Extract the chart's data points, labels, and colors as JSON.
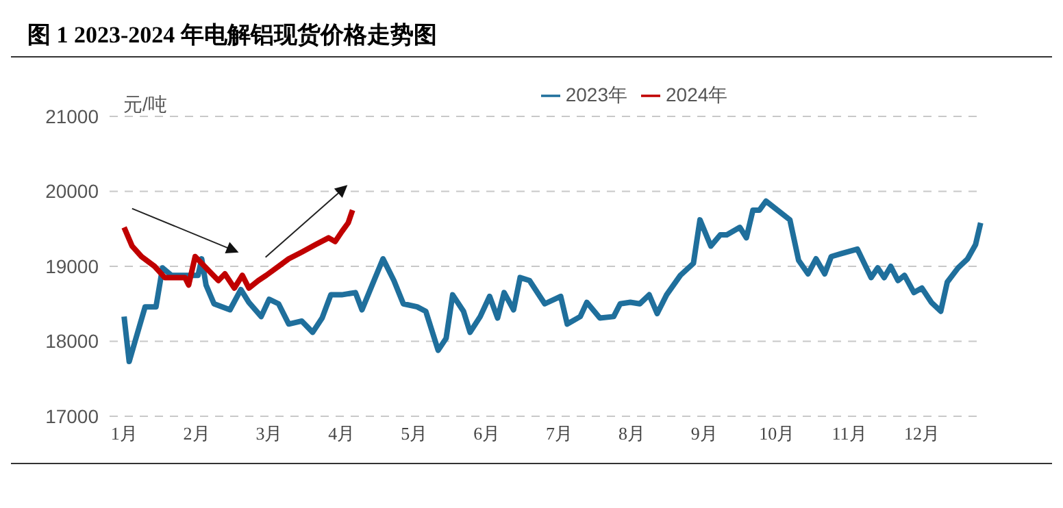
{
  "chart_data": {
    "type": "line",
    "title": "图 1 2023-2024 年电解铝现货价格走势图",
    "ylabel": "元/吨",
    "xlim": [
      0.8,
      12.85
    ],
    "xticks": [
      {
        "value": 1,
        "label": "1月"
      },
      {
        "value": 2,
        "label": "2月"
      },
      {
        "value": 3,
        "label": "3月"
      },
      {
        "value": 4,
        "label": "4月"
      },
      {
        "value": 5,
        "label": "5月"
      },
      {
        "value": 6,
        "label": "6月"
      },
      {
        "value": 7,
        "label": "7月"
      },
      {
        "value": 8,
        "label": "8月"
      },
      {
        "value": 9,
        "label": "9月"
      },
      {
        "value": 10,
        "label": "10月"
      },
      {
        "value": 11,
        "label": "11月"
      },
      {
        "value": 12,
        "label": "12月"
      }
    ],
    "ylim": [
      17000,
      21000
    ],
    "yticks": [
      17000,
      18000,
      19000,
      20000,
      21000
    ],
    "grid": "y",
    "legend": "top",
    "marker": "none",
    "line_style": "solid",
    "series": [
      {
        "name": "2023年",
        "color": "#1f6f9c",
        "x": [
          1.0,
          1.07,
          1.29,
          1.44,
          1.53,
          1.65,
          2.02,
          2.07,
          2.13,
          2.24,
          2.46,
          2.61,
          2.72,
          2.89,
          3.0,
          3.13,
          3.27,
          3.45,
          3.6,
          3.73,
          3.85,
          4.0,
          4.19,
          4.28,
          4.42,
          4.57,
          4.72,
          4.85,
          5.04,
          5.16,
          5.33,
          5.44,
          5.53,
          5.68,
          5.77,
          5.91,
          6.04,
          6.15,
          6.24,
          6.37,
          6.46,
          6.59,
          6.8,
          7.02,
          7.11,
          7.29,
          7.38,
          7.56,
          7.75,
          7.84,
          7.98,
          8.11,
          8.24,
          8.35,
          8.48,
          8.67,
          8.85,
          8.94,
          9.09,
          9.22,
          9.31,
          9.49,
          9.58,
          9.67,
          9.76,
          9.85,
          10.18,
          10.3,
          10.43,
          10.54,
          10.66,
          10.75,
          10.89,
          11.11,
          11.3,
          11.39,
          11.48,
          11.57,
          11.67,
          11.76,
          11.89,
          12.0,
          12.13,
          12.26,
          12.35,
          12.5,
          12.63,
          12.74,
          12.81
        ],
        "values": [
          18330,
          17730,
          18460,
          18460,
          18980,
          18880,
          18880,
          19100,
          18750,
          18500,
          18420,
          18690,
          18520,
          18330,
          18560,
          18500,
          18230,
          18270,
          18120,
          18310,
          18620,
          18620,
          18650,
          18420,
          18750,
          19100,
          18810,
          18500,
          18460,
          18400,
          17880,
          18040,
          18620,
          18400,
          18120,
          18330,
          18600,
          18310,
          18650,
          18420,
          18850,
          18810,
          18500,
          18600,
          18230,
          18330,
          18520,
          18310,
          18330,
          18500,
          18520,
          18500,
          18620,
          18370,
          18620,
          18880,
          19040,
          19620,
          19270,
          19420,
          19420,
          19520,
          19380,
          19750,
          19750,
          19870,
          19620,
          19080,
          18900,
          19100,
          18900,
          19130,
          19170,
          19230,
          18850,
          18980,
          18850,
          19000,
          18810,
          18880,
          18650,
          18710,
          18520,
          18400,
          18790,
          18980,
          19100,
          19290,
          19580
        ]
      },
      {
        "name": "2024年",
        "color": "#c00000",
        "x": [
          1.0,
          1.11,
          1.24,
          1.42,
          1.56,
          1.84,
          1.89,
          1.98,
          2.13,
          2.3,
          2.39,
          2.52,
          2.63,
          2.72,
          2.85,
          2.96,
          3.13,
          3.27,
          3.45,
          3.64,
          3.82,
          3.91,
          4.0,
          4.09,
          4.15
        ],
        "values": [
          19520,
          19270,
          19130,
          19000,
          18850,
          18850,
          18750,
          19130,
          18980,
          18810,
          18900,
          18710,
          18880,
          18710,
          18810,
          18880,
          19000,
          19100,
          19190,
          19290,
          19380,
          19330,
          19460,
          19580,
          19750
        ]
      }
    ]
  }
}
